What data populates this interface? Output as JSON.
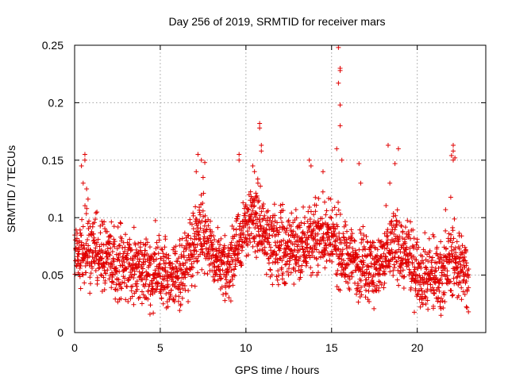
{
  "chart_data": {
    "type": "scatter",
    "title": "Day 256 of 2019, SRMTID for receiver mars",
    "xlabel": "GPS time / hours",
    "ylabel": "SRMTID / TECUs",
    "xlim": [
      0,
      24
    ],
    "ylim": [
      0,
      0.25
    ],
    "grid": true,
    "marker": "+",
    "color": "#e00000",
    "x_ticks": [
      0,
      5,
      10,
      15,
      20
    ],
    "x_tick_labels": [
      "0",
      "5",
      "10",
      "15",
      "20"
    ],
    "y_ticks": [
      0,
      0.05,
      0.1,
      0.15,
      0.2,
      0.25
    ],
    "y_tick_labels": [
      "0",
      "0.05",
      "0.1",
      "0.15",
      "0.2",
      "0.25"
    ],
    "x_grid": [
      5,
      10,
      15,
      20
    ],
    "y_grid": [
      0.05,
      0.1,
      0.15,
      0.2
    ],
    "point_count": 2400,
    "trend": [
      [
        0.0,
        0.068
      ],
      [
        0.5,
        0.072
      ],
      [
        1.0,
        0.07
      ],
      [
        1.5,
        0.068
      ],
      [
        2.0,
        0.066
      ],
      [
        2.5,
        0.062
      ],
      [
        3.0,
        0.058
      ],
      [
        3.5,
        0.055
      ],
      [
        4.0,
        0.052
      ],
      [
        4.5,
        0.05
      ],
      [
        5.0,
        0.052
      ],
      [
        5.5,
        0.048
      ],
      [
        6.0,
        0.05
      ],
      [
        6.5,
        0.058
      ],
      [
        7.0,
        0.078
      ],
      [
        7.3,
        0.095
      ],
      [
        7.7,
        0.082
      ],
      [
        8.0,
        0.068
      ],
      [
        8.5,
        0.055
      ],
      [
        9.0,
        0.058
      ],
      [
        9.5,
        0.075
      ],
      [
        10.0,
        0.092
      ],
      [
        10.5,
        0.1
      ],
      [
        11.0,
        0.088
      ],
      [
        11.5,
        0.08
      ],
      [
        12.0,
        0.072
      ],
      [
        12.5,
        0.072
      ],
      [
        13.0,
        0.074
      ],
      [
        13.5,
        0.078
      ],
      [
        14.0,
        0.082
      ],
      [
        14.5,
        0.085
      ],
      [
        15.0,
        0.08
      ],
      [
        15.5,
        0.07
      ],
      [
        16.0,
        0.064
      ],
      [
        16.5,
        0.062
      ],
      [
        17.0,
        0.06
      ],
      [
        17.5,
        0.055
      ],
      [
        18.0,
        0.06
      ],
      [
        18.5,
        0.078
      ],
      [
        19.0,
        0.072
      ],
      [
        19.5,
        0.062
      ],
      [
        20.0,
        0.055
      ],
      [
        20.5,
        0.05
      ],
      [
        21.0,
        0.048
      ],
      [
        21.5,
        0.052
      ],
      [
        22.0,
        0.065
      ],
      [
        22.5,
        0.058
      ],
      [
        23.0,
        0.045
      ]
    ],
    "spikes": [
      [
        0.6,
        0.155
      ],
      [
        0.6,
        0.15
      ],
      [
        0.4,
        0.145
      ],
      [
        0.5,
        0.13
      ],
      [
        0.7,
        0.125
      ],
      [
        7.2,
        0.155
      ],
      [
        7.4,
        0.15
      ],
      [
        7.6,
        0.148
      ],
      [
        7.1,
        0.14
      ],
      [
        7.5,
        0.135
      ],
      [
        9.6,
        0.155
      ],
      [
        9.6,
        0.15
      ],
      [
        10.4,
        0.145
      ],
      [
        10.5,
        0.14
      ],
      [
        10.7,
        0.13
      ],
      [
        10.8,
        0.182
      ],
      [
        10.8,
        0.178
      ],
      [
        10.9,
        0.163
      ],
      [
        10.9,
        0.158
      ],
      [
        13.7,
        0.15
      ],
      [
        13.8,
        0.145
      ],
      [
        14.5,
        0.14
      ],
      [
        15.4,
        0.248
      ],
      [
        15.5,
        0.23
      ],
      [
        15.5,
        0.228
      ],
      [
        15.4,
        0.217
      ],
      [
        15.5,
        0.198
      ],
      [
        15.5,
        0.18
      ],
      [
        15.6,
        0.15
      ],
      [
        15.3,
        0.16
      ],
      [
        16.6,
        0.147
      ],
      [
        16.7,
        0.13
      ],
      [
        18.3,
        0.163
      ],
      [
        18.9,
        0.16
      ],
      [
        18.7,
        0.147
      ],
      [
        18.4,
        0.13
      ],
      [
        22.1,
        0.163
      ],
      [
        22.1,
        0.158
      ],
      [
        22.0,
        0.154
      ],
      [
        22.2,
        0.152
      ],
      [
        22.1,
        0.15
      ],
      [
        4.4,
        0.016
      ]
    ]
  }
}
